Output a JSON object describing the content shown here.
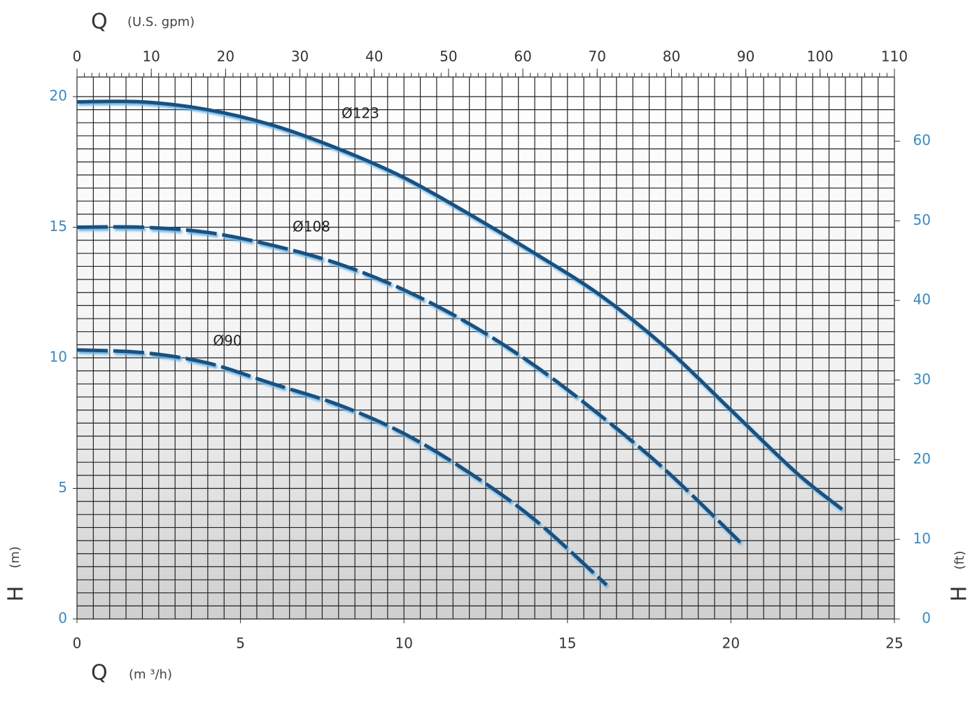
{
  "chart_data": {
    "type": "line",
    "x_label": {
      "symbol": "Q",
      "unit": "(m ³/h)"
    },
    "x2_label": {
      "symbol": "Q",
      "unit": "(U.S. gpm)"
    },
    "y_label": {
      "symbol": "H",
      "unit": "(m)"
    },
    "y2_label": {
      "symbol": "H",
      "unit": "(ft)"
    },
    "xlim": [
      0,
      25
    ],
    "xticks": [
      0,
      5,
      10,
      15,
      20,
      25
    ],
    "x2lim": [
      0,
      110
    ],
    "x2ticks": [
      0,
      10,
      20,
      30,
      40,
      50,
      60,
      70,
      80,
      90,
      100,
      110
    ],
    "ylim": [
      0,
      20
    ],
    "yticks": [
      0,
      5,
      10,
      15,
      20
    ],
    "y2lim": [
      0,
      65.6
    ],
    "y2ticks": [
      0,
      10,
      20,
      30,
      40,
      50,
      60
    ],
    "grid": true,
    "xminor": 0.5,
    "yminor": 0.5,
    "x2minor": 1,
    "series": [
      {
        "name": "Ø123",
        "color": "#1d4f7c",
        "dashed": false,
        "x": [
          0,
          2,
          4,
          6,
          8,
          10,
          12,
          14,
          16,
          18,
          20,
          22,
          23.4
        ],
        "values": [
          19.8,
          19.8,
          19.5,
          18.9,
          18.0,
          16.9,
          15.5,
          14.0,
          12.4,
          10.4,
          8.0,
          5.6,
          4.2
        ]
      },
      {
        "name": "Ø108",
        "color": "#1d4f7c",
        "dashed": true,
        "x": [
          0,
          2,
          4,
          6,
          8,
          10,
          12,
          14,
          16,
          18,
          20.4
        ],
        "values": [
          15.0,
          15.0,
          14.8,
          14.3,
          13.6,
          12.6,
          11.3,
          9.7,
          7.8,
          5.7,
          2.8
        ]
      },
      {
        "name": "Ø90",
        "color": "#1d4f7c",
        "dashed": true,
        "x": [
          0,
          2,
          4,
          6,
          8,
          10,
          12,
          14,
          16.2
        ],
        "values": [
          10.3,
          10.2,
          9.8,
          9.0,
          8.2,
          7.1,
          5.6,
          3.8,
          1.3
        ]
      }
    ]
  }
}
